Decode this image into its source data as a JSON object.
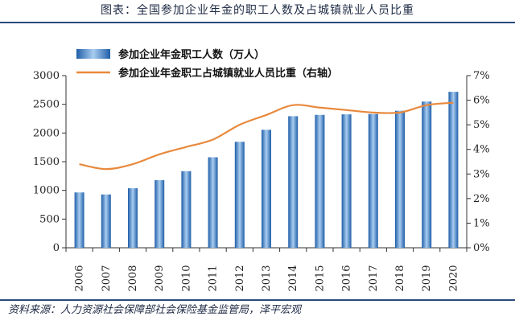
{
  "header": {
    "title": "图表：全国参加企业年金的职工人数及占城镇就业人员比重"
  },
  "footer": {
    "source": "资料来源：人力资源社会保障部社会保险基金监管局，泽平宏观"
  },
  "colors": {
    "bar_dark": "#1f5ea8",
    "bar_light": "#a9cdf0",
    "line": "#e8893c",
    "axis": "#333333",
    "rule": "#2c4a7a"
  },
  "chart_data": {
    "type": "bar",
    "title": "",
    "categories": [
      "2006",
      "2007",
      "2008",
      "2009",
      "2010",
      "2011",
      "2012",
      "2013",
      "2014",
      "2015",
      "2016",
      "2017",
      "2018",
      "2019",
      "2020"
    ],
    "series": [
      {
        "name": "参加企业年金职工人数（万人）",
        "type": "bar",
        "axis": "left",
        "values": [
          964,
          929,
          1038,
          1179,
          1335,
          1577,
          1847,
          2056,
          2293,
          2316,
          2325,
          2331,
          2388,
          2548,
          2718
        ]
      },
      {
        "name": "参加企业年金职工占城镇就业人员比重（右轴）",
        "type": "line",
        "axis": "right",
        "values": [
          3.4,
          3.2,
          3.4,
          3.8,
          4.1,
          4.4,
          5.0,
          5.4,
          5.8,
          5.7,
          5.6,
          5.5,
          5.5,
          5.8,
          5.9
        ]
      }
    ],
    "y_left": {
      "min": 0,
      "max": 3000,
      "ticks": [
        "0",
        "500",
        "1000",
        "1500",
        "2000",
        "2500",
        "3000"
      ]
    },
    "y_right": {
      "min": 0,
      "max": 7,
      "ticks": [
        "0%",
        "1%",
        "2%",
        "3%",
        "4%",
        "5%",
        "6%",
        "7%"
      ]
    },
    "grid": false,
    "legend_position": "top-left"
  }
}
